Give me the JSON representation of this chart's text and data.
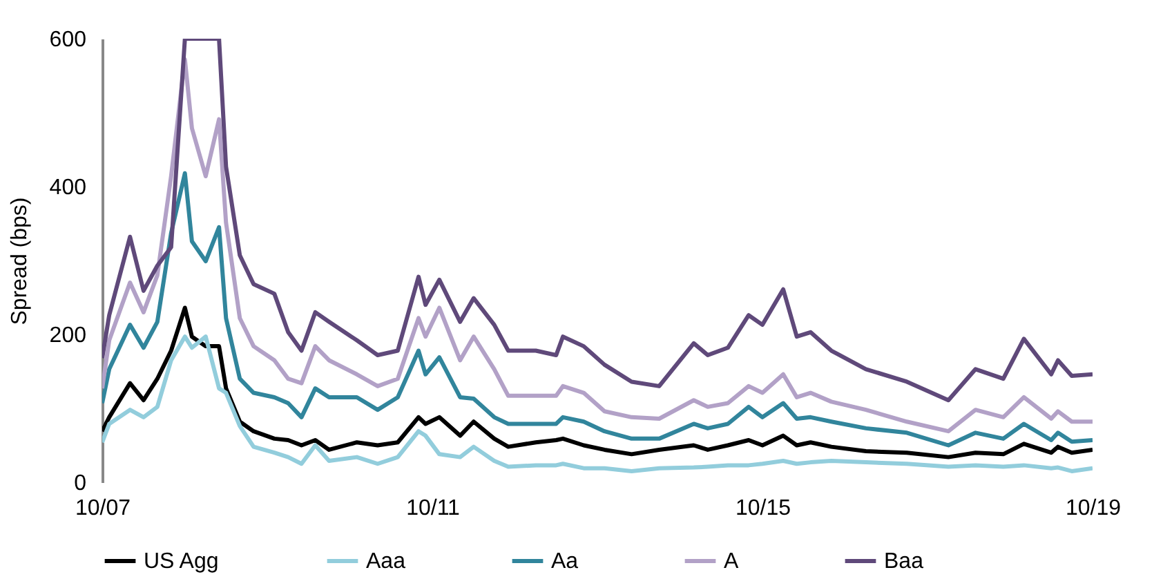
{
  "chart_data": {
    "type": "line",
    "ylabel": "Spread (bps)",
    "x": [
      "2007-10",
      "2007-11",
      "2008-02",
      "2008-04",
      "2008-06",
      "2008-08",
      "2008-10",
      "2008-11",
      "2009-01",
      "2009-03",
      "2009-04",
      "2009-06",
      "2009-08",
      "2009-11",
      "2010-01",
      "2010-03",
      "2010-05",
      "2010-07",
      "2010-11",
      "2011-02",
      "2011-05",
      "2011-08",
      "2011-09",
      "2011-11",
      "2012-02",
      "2012-04",
      "2012-07",
      "2012-09",
      "2013-01",
      "2013-04",
      "2013-05",
      "2013-08",
      "2013-11",
      "2014-03",
      "2014-07",
      "2014-12",
      "2015-02",
      "2015-05",
      "2015-08",
      "2015-10",
      "2016-01",
      "2016-03",
      "2016-05",
      "2016-08",
      "2017-01",
      "2017-07",
      "2018-01",
      "2018-05",
      "2018-09",
      "2018-12",
      "2019-04",
      "2019-05",
      "2019-07",
      "2019-10"
    ],
    "series": [
      {
        "name": "US Agg",
        "color": "#000000",
        "values": [
          69,
          88,
          134,
          111,
          140,
          178,
          236,
          197,
          184,
          184,
          127,
          82,
          69,
          59,
          57,
          50,
          57,
          44,
          54,
          50,
          54,
          88,
          79,
          88,
          63,
          82,
          59,
          48,
          54,
          57,
          59,
          50,
          44,
          38,
          44,
          50,
          44,
          50,
          57,
          50,
          63,
          50,
          54,
          48,
          42,
          40,
          34,
          40,
          38,
          52,
          40,
          48,
          40,
          44
        ]
      },
      {
        "name": "Aaa",
        "color": "#92cddc",
        "values": [
          54,
          79,
          98,
          88,
          102,
          165,
          197,
          182,
          197,
          127,
          121,
          76,
          48,
          40,
          34,
          25,
          50,
          29,
          34,
          25,
          34,
          69,
          63,
          38,
          34,
          48,
          29,
          21,
          23,
          23,
          25,
          19,
          19,
          15,
          19,
          20,
          21,
          23,
          23,
          25,
          29,
          25,
          27,
          29,
          27,
          25,
          21,
          23,
          21,
          23,
          19,
          20,
          15,
          19
        ]
      },
      {
        "name": "Aa",
        "color": "#31859c",
        "values": [
          107,
          153,
          213,
          182,
          217,
          337,
          418,
          326,
          299,
          345,
          222,
          140,
          121,
          115,
          107,
          88,
          127,
          115,
          115,
          98,
          115,
          178,
          146,
          169,
          115,
          113,
          88,
          79,
          79,
          79,
          88,
          82,
          69,
          59,
          59,
          79,
          73,
          79,
          102,
          88,
          107,
          86,
          88,
          82,
          73,
          67,
          50,
          67,
          59,
          79,
          57,
          67,
          55,
          57
        ]
      },
      {
        "name": "A",
        "color": "#b2a1c7",
        "values": [
          127,
          192,
          270,
          230,
          280,
          414,
          572,
          479,
          414,
          491,
          351,
          222,
          184,
          165,
          140,
          134,
          184,
          165,
          146,
          130,
          140,
          222,
          197,
          236,
          165,
          197,
          153,
          117,
          117,
          117,
          130,
          121,
          96,
          88,
          86,
          111,
          102,
          107,
          130,
          121,
          146,
          115,
          121,
          109,
          98,
          82,
          69,
          98,
          88,
          115,
          86,
          96,
          82,
          82
        ]
      },
      {
        "name": "Baa",
        "color": "#5f497a",
        "values": [
          168,
          226,
          332,
          259,
          293,
          318,
          600,
          600,
          600,
          600,
          427,
          307,
          268,
          255,
          203,
          178,
          230,
          217,
          192,
          172,
          178,
          278,
          240,
          274,
          217,
          249,
          213,
          178,
          178,
          172,
          197,
          184,
          159,
          136,
          130,
          188,
          172,
          182,
          226,
          213,
          261,
          197,
          203,
          178,
          153,
          136,
          111,
          153,
          140,
          194,
          146,
          165,
          144,
          146
        ]
      }
    ],
    "xlim": [
      "2007-10",
      "2019-10"
    ],
    "xticks": [
      {
        "value": "2007-10",
        "label": "10/07"
      },
      {
        "value": "2011-10",
        "label": "10/11"
      },
      {
        "value": "2015-10",
        "label": "10/15"
      },
      {
        "value": "2019-10",
        "label": "10/19"
      }
    ],
    "ylim": [
      0,
      600
    ],
    "yticks": [
      0,
      200,
      400,
      600
    ],
    "grid": false,
    "legend": "bottom",
    "marker": "none",
    "line_style": "solid"
  }
}
